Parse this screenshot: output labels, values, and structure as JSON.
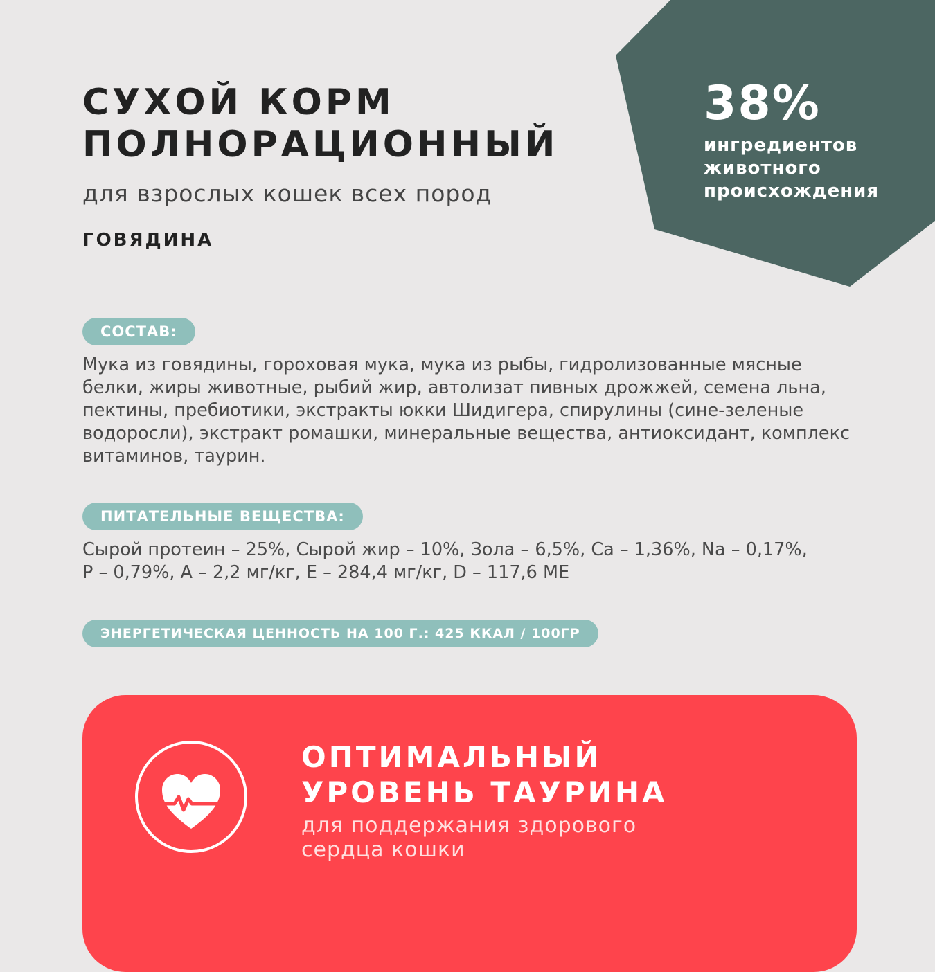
{
  "product": {
    "title_line1": "СУХОЙ КОРМ",
    "title_line2": "ПОЛНОРАЦИОННЫЙ",
    "subtitle": "для взрослых кошек всех пород",
    "flavor": "ГОВЯДИНА"
  },
  "badge": {
    "percent": "38%",
    "caption_line1": "ингредиентов",
    "caption_line2": "животного",
    "caption_line3": "происхождения",
    "color": "#4c6662"
  },
  "composition": {
    "label": "СОСТАВ:",
    "text": "Мука из говядины, гороховая мука, мука из рыбы, гидролизованные мясные белки, жиры животные, рыбий жир, автолизат пивных дрожжей, семена льна, пектины, пребиотики, экстракты юкки Шидигера, спирулины (сине-зеленые водоросли), экстракт ромашки, минеральные вещества, антиоксидант, комплекс витаминов, таурин."
  },
  "nutrients": {
    "label": "ПИТАТЕЛЬНЫЕ ВЕЩЕСТВА:",
    "line1": "Сырой протеин – 25%, Сырой жир – 10%, Зола – 6,5%, Са – 1,36%, Na – 0,17%,",
    "line2": "P – 0,79%, A – 2,2 мг/кг, E – 284,4 мг/кг, D – 117,6 МЕ"
  },
  "energy": {
    "label": "ЭНЕРГЕТИЧЕСКАЯ ЦЕННОСТЬ НА 100 Г.: 425 ККАЛ / 100ГР"
  },
  "feature": {
    "icon": "heart-pulse-icon",
    "title_line1": "ОПТИМАЛЬНЫЙ",
    "title_line2": "УРОВЕНЬ ТАУРИНА",
    "text_line1": "для поддержания здорового",
    "text_line2": "сердца кошки",
    "color": "#fe444c"
  },
  "colors": {
    "background": "#eae8e8",
    "pill": "#8fbfbb",
    "badge": "#4c6662",
    "feature": "#fe444c"
  }
}
